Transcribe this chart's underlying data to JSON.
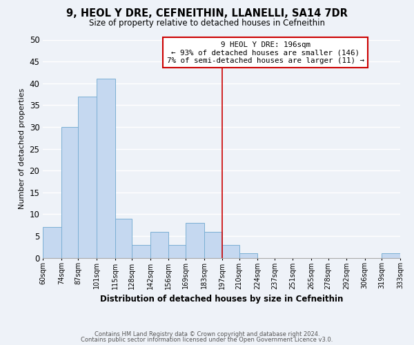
{
  "title": "9, HEOL Y DRE, CEFNEITHIN, LLANELLI, SA14 7DR",
  "subtitle": "Size of property relative to detached houses in Cefneithin",
  "xlabel": "Distribution of detached houses by size in Cefneithin",
  "ylabel": "Number of detached properties",
  "bin_edges": [
    60,
    74,
    87,
    101,
    115,
    128,
    142,
    156,
    169,
    183,
    197,
    210,
    224,
    237,
    251,
    265,
    278,
    292,
    306,
    319,
    333
  ],
  "bar_heights": [
    7,
    30,
    37,
    41,
    9,
    3,
    6,
    3,
    8,
    6,
    3,
    1,
    0,
    0,
    0,
    0,
    0,
    0,
    0,
    1
  ],
  "bar_color": "#c5d8f0",
  "bar_edgecolor": "#7bafd4",
  "vline_x": 197,
  "vline_color": "#cc0000",
  "ylim": [
    0,
    50
  ],
  "yticks": [
    0,
    5,
    10,
    15,
    20,
    25,
    30,
    35,
    40,
    45,
    50
  ],
  "annotation_title": "9 HEOL Y DRE: 196sqm",
  "annotation_line1": "← 93% of detached houses are smaller (146)",
  "annotation_line2": "7% of semi-detached houses are larger (11) →",
  "annotation_box_color": "#ffffff",
  "annotation_box_edgecolor": "#cc0000",
  "footer_line1": "Contains HM Land Registry data © Crown copyright and database right 2024.",
  "footer_line2": "Contains public sector information licensed under the Open Government Licence v3.0.",
  "background_color": "#eef2f8",
  "grid_color": "#ffffff",
  "xtick_labels": [
    "60sqm",
    "74sqm",
    "87sqm",
    "101sqm",
    "115sqm",
    "128sqm",
    "142sqm",
    "156sqm",
    "169sqm",
    "183sqm",
    "197sqm",
    "210sqm",
    "224sqm",
    "237sqm",
    "251sqm",
    "265sqm",
    "278sqm",
    "292sqm",
    "306sqm",
    "319sqm",
    "333sqm"
  ]
}
